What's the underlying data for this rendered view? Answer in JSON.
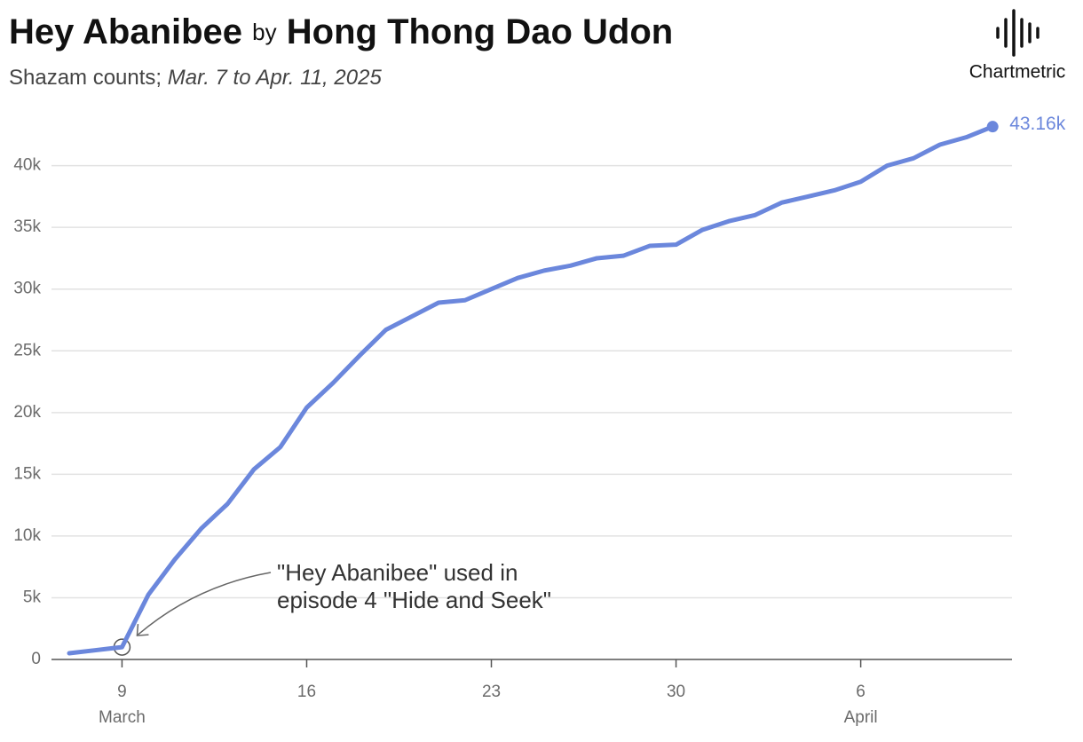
{
  "chart_data": {
    "type": "line",
    "title_song": "Hey Abanibee",
    "title_by": "by",
    "title_artist": "Hong Thong Dao Udon",
    "subtitle_metric": "Shazam counts;",
    "subtitle_range": "Mar. 7 to Apr. 11, 2025",
    "brand": "Chartmetric",
    "categories": [
      "Mar 7",
      "Mar 8",
      "Mar 9",
      "Mar 10",
      "Mar 11",
      "Mar 12",
      "Mar 13",
      "Mar 14",
      "Mar 15",
      "Mar 16",
      "Mar 17",
      "Mar 18",
      "Mar 19",
      "Mar 20",
      "Mar 21",
      "Mar 22",
      "Mar 23",
      "Mar 24",
      "Mar 25",
      "Mar 26",
      "Mar 27",
      "Mar 28",
      "Mar 29",
      "Mar 30",
      "Mar 31",
      "Apr 1",
      "Apr 2",
      "Apr 3",
      "Apr 4",
      "Apr 5",
      "Apr 6",
      "Apr 7",
      "Apr 8",
      "Apr 9",
      "Apr 10",
      "Apr 11"
    ],
    "series": [
      {
        "name": "Shazam counts",
        "color": "#6b87dc",
        "values": [
          500,
          750,
          1000,
          5250,
          8100,
          10600,
          12600,
          15400,
          17200,
          20400,
          22400,
          24600,
          26700,
          27800,
          28900,
          29100,
          30000,
          30900,
          31500,
          31900,
          32500,
          32700,
          33500,
          33600,
          34800,
          35500,
          36000,
          37000,
          37500,
          38000,
          38700,
          40000,
          40600,
          41700,
          42300,
          43160
        ],
        "end_label": "43.16k"
      }
    ],
    "ylim": [
      0,
      44000
    ],
    "yticks": [
      0,
      {
        "value": 5000,
        "label": "5k"
      },
      {
        "value": 10000,
        "label": "10k"
      },
      {
        "value": 15000,
        "label": "15k"
      },
      {
        "value": 20000,
        "label": "20k"
      },
      {
        "value": 25000,
        "label": "25k"
      },
      {
        "value": 30000,
        "label": "30k"
      },
      {
        "value": 35000,
        "label": "35k"
      },
      {
        "value": 40000,
        "label": "40k"
      }
    ],
    "xticks": [
      {
        "value": "Mar 9",
        "label": "9"
      },
      {
        "value": "Mar 16",
        "label": "16"
      },
      {
        "value": "Mar 23",
        "label": "23"
      },
      {
        "value": "Mar 30",
        "label": "30"
      },
      {
        "value": "Apr 6",
        "label": "6"
      }
    ],
    "month_labels": [
      {
        "value": "Mar 9",
        "label": "March"
      },
      {
        "value": "Apr 6",
        "label": "April"
      }
    ],
    "grid": true,
    "annotation": {
      "at": "Mar 9",
      "lines": [
        "\"Hey Abanibee\" used in",
        "episode 4 \"Hide and Seek\""
      ]
    }
  }
}
